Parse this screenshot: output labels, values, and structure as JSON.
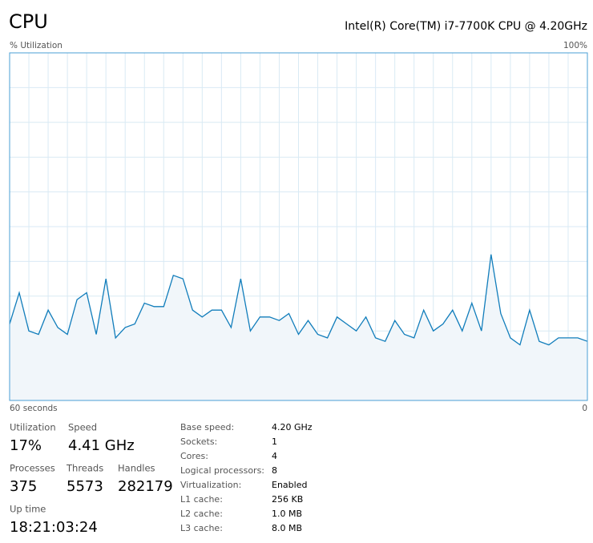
{
  "header": {
    "title": "CPU",
    "processor": "Intel(R) Core(TM) i7-7700K CPU @ 4.20GHz"
  },
  "chart_data": {
    "type": "line",
    "y_label": "% Utilization",
    "x": [
      60,
      59,
      58,
      57,
      56,
      55,
      54,
      53,
      52,
      51,
      50,
      49,
      48,
      47,
      46,
      45,
      44,
      43,
      42,
      41,
      40,
      39,
      38,
      37,
      36,
      35,
      34,
      33,
      32,
      31,
      30,
      29,
      28,
      27,
      26,
      25,
      24,
      23,
      22,
      21,
      20,
      19,
      18,
      17,
      16,
      15,
      14,
      13,
      12,
      11,
      10,
      9,
      8,
      7,
      6,
      5,
      4,
      3,
      2,
      1,
      0
    ],
    "series": [
      {
        "name": "CPU",
        "color": "#117dbb",
        "fill": "#f1f6fa",
        "values": [
          22,
          31,
          20,
          19,
          26,
          21,
          19,
          29,
          31,
          19,
          35,
          18,
          21,
          22,
          28,
          27,
          27,
          36,
          35,
          26,
          24,
          26,
          26,
          21,
          35,
          20,
          24,
          24,
          23,
          25,
          19,
          23,
          19,
          18,
          24,
          22,
          20,
          24,
          18,
          17,
          23,
          19,
          18,
          26,
          20,
          22,
          26,
          20,
          28,
          20,
          42,
          25,
          18,
          16,
          26,
          17,
          16,
          18,
          18,
          18,
          17
        ]
      }
    ],
    "xlim": [
      60,
      0
    ],
    "ylim": [
      0,
      100
    ],
    "xticks": [
      {
        "value": 60,
        "label": "60 seconds"
      },
      0
    ],
    "yticks": [
      {
        "value": 100,
        "label": "100%"
      }
    ],
    "ygrid": [
      10,
      20,
      30,
      40,
      50,
      60,
      70,
      80,
      90
    ],
    "xgrid": [
      58,
      56,
      54,
      52,
      50,
      48,
      46,
      44,
      42,
      40,
      38,
      36,
      34,
      32,
      30,
      28,
      26,
      24,
      22,
      20,
      18,
      16,
      14,
      12,
      10,
      8,
      6,
      4,
      2
    ],
    "grid": true
  },
  "stats": [
    {
      "label": "Utilization",
      "value": "17%"
    },
    {
      "label": "Speed",
      "value": "4.41 GHz"
    },
    {
      "label": "Processes",
      "value": "375"
    },
    {
      "label": "Threads",
      "value": "5573"
    },
    {
      "label": "Handles",
      "value": "282179"
    },
    {
      "label": "Up time",
      "value": "18:21:03:24"
    }
  ],
  "details": [
    [
      "Base speed:",
      "4.20 GHz"
    ],
    [
      "Sockets:",
      "1"
    ],
    [
      "Cores:",
      "4"
    ],
    [
      "Logical processors:",
      "8"
    ],
    [
      "Virtualization:",
      "Enabled"
    ],
    [
      "L1 cache:",
      "256 KB"
    ],
    [
      "L2 cache:",
      "1.0 MB"
    ],
    [
      "L3 cache:",
      "8.0 MB"
    ]
  ]
}
